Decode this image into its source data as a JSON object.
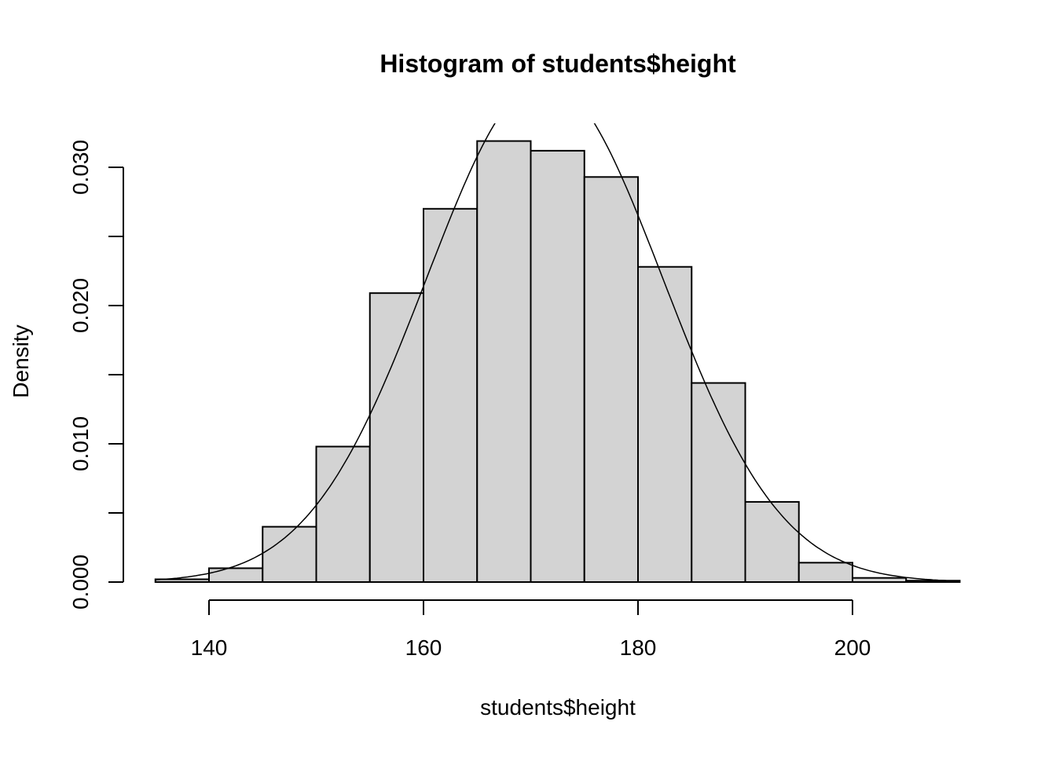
{
  "chart_data": {
    "type": "bar",
    "title": "Histogram of students$height",
    "xlabel": "students$height",
    "ylabel": "Density",
    "bin_edges": [
      135,
      140,
      145,
      150,
      155,
      160,
      165,
      170,
      175,
      180,
      185,
      190,
      195,
      200,
      205,
      210
    ],
    "values": [
      0.0002,
      0.001,
      0.004,
      0.0098,
      0.0209,
      0.027,
      0.0319,
      0.0312,
      0.0293,
      0.0228,
      0.0144,
      0.0058,
      0.0014,
      0.0003,
      0.0001
    ],
    "xticks": [
      140,
      160,
      180,
      200
    ],
    "xtick_labels": [
      "140",
      "160",
      "180",
      "200"
    ],
    "yticks": [
      0,
      0.005,
      0.01,
      0.015,
      0.02,
      0.025,
      0.03
    ],
    "ytick_labels": [
      "0.000",
      "",
      "0.010",
      "",
      "0.020",
      "",
      "0.030"
    ],
    "xlim": [
      135,
      210
    ],
    "ylim": [
      0,
      0.0332
    ],
    "grid": false,
    "bar_fill": "#d3d3d3",
    "overlay_curve": {
      "type": "normal-density",
      "mean": 171.3,
      "sd": 11,
      "color": "#000000"
    }
  }
}
